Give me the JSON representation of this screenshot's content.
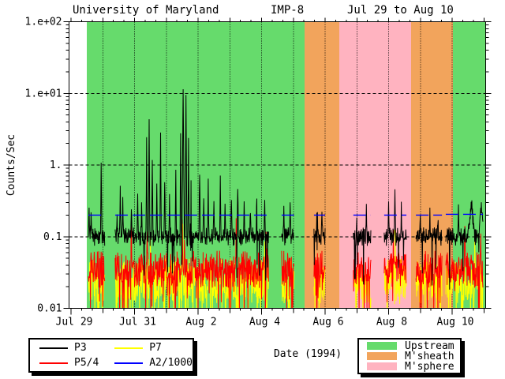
{
  "title": {
    "left": "University of Maryland",
    "center": "IMP-8",
    "right": "Jul 29 to Aug 10"
  },
  "axis": {
    "ylabel": "Counts/Sec",
    "xlabel": "Date (1994)"
  },
  "legend_series": {
    "items": [
      {
        "label": "P3",
        "color": "#000000"
      },
      {
        "label": "P5/4",
        "color": "#FF0000"
      },
      {
        "label": "P7",
        "color": "#FFFF00"
      },
      {
        "label": "A2/1000",
        "color": "#0000FF"
      }
    ]
  },
  "legend_regions": {
    "items": [
      {
        "label": "Upstream",
        "color": "#66DB6C"
      },
      {
        "label": "M'sheath",
        "color": "#F2A45C"
      },
      {
        "label": "M'sphere",
        "color": "#FFB3C0"
      }
    ]
  },
  "chart_data": {
    "type": "line",
    "title": "University of Maryland  IMP-8  Jul 29 to Aug 10",
    "xlabel": "Date (1994)",
    "ylabel": "Counts/Sec",
    "x_axis": {
      "unit": "days from 1994-07-29 00:00",
      "min": -0.06,
      "max": 13.06,
      "labeled_tick_days": [
        0,
        2,
        4,
        6,
        8,
        10,
        12
      ],
      "labeled_tick_labels": [
        "Jul 29",
        "Jul 31",
        "Aug 2",
        "Aug 4",
        "Aug 6",
        "Aug 8",
        "Aug 10"
      ],
      "day_tick_interval": 1,
      "minor_tick_interval": 0.33333
    },
    "y_axis": {
      "scale": "log",
      "min": 0.01,
      "max": 100,
      "tick_values": [
        100,
        10,
        1,
        0.1,
        0.01
      ],
      "tick_labels": [
        "1.e+02",
        "1.e+01",
        "1.",
        "0.1",
        "0.01"
      ]
    },
    "grid": {
      "vertical": "dotted each day",
      "horizontal": "dashed each decade",
      "legend_position": "below"
    },
    "regions": [
      {
        "label": "Upstream",
        "color": "#66DB6C",
        "from_day": 0.497,
        "to_day": 7.354
      },
      {
        "label": "M'sheath",
        "color": "#F2A45C",
        "from_day": 7.354,
        "to_day": 8.447
      },
      {
        "label": "M'sphere",
        "color": "#FFB3C0",
        "from_day": 8.447,
        "to_day": 10.708
      },
      {
        "label": "M'sheath",
        "color": "#F2A45C",
        "from_day": 10.708,
        "to_day": 12.025
      },
      {
        "label": "Upstream",
        "color": "#66DB6C",
        "from_day": 12.025,
        "to_day": 13.06
      }
    ],
    "data_intervals": [
      [
        0.55,
        1.07
      ],
      [
        1.39,
        6.22
      ],
      [
        6.63,
        7.02
      ],
      [
        7.65,
        8.0
      ],
      [
        8.89,
        9.44
      ],
      [
        9.86,
        10.56
      ],
      [
        10.86,
        11.68
      ],
      [
        11.8,
        12.97
      ]
    ],
    "sample_step_days": 0.01,
    "series": [
      {
        "name": "P3",
        "color": "#000000",
        "style": "solid",
        "baseline": 0.1,
        "noise_log10": 0.09,
        "spikes": [
          [
            0.57,
            0.28
          ],
          [
            0.63,
            0.2
          ],
          [
            0.95,
            1.15
          ],
          [
            1.45,
            0.22
          ],
          [
            1.55,
            0.45
          ],
          [
            1.63,
            0.3
          ],
          [
            1.9,
            0.25
          ],
          [
            2.1,
            0.4
          ],
          [
            2.22,
            0.3
          ],
          [
            2.38,
            2.0
          ],
          [
            2.46,
            4.5
          ],
          [
            2.56,
            1.3
          ],
          [
            2.7,
            0.5
          ],
          [
            2.82,
            3.0
          ],
          [
            2.95,
            0.6
          ],
          [
            3.1,
            0.35
          ],
          [
            3.3,
            0.7
          ],
          [
            3.45,
            2.5
          ],
          [
            3.53,
            13.5,
            0.035
          ],
          [
            3.62,
            8.0,
            0.03
          ],
          [
            3.7,
            2.0
          ],
          [
            3.78,
            0.6
          ],
          [
            4.05,
            0.9
          ],
          [
            4.18,
            0.35
          ],
          [
            4.32,
            0.5
          ],
          [
            4.5,
            0.3
          ],
          [
            4.7,
            0.65
          ],
          [
            4.85,
            0.3
          ],
          [
            5.05,
            0.35
          ],
          [
            5.25,
            0.55
          ],
          [
            5.45,
            0.3
          ],
          [
            5.65,
            0.25
          ],
          [
            5.85,
            0.35
          ],
          [
            6.1,
            0.32
          ],
          [
            6.7,
            0.3
          ],
          [
            6.9,
            0.28
          ],
          [
            7.75,
            0.3
          ],
          [
            7.9,
            0.25
          ],
          [
            9.0,
            0.2
          ],
          [
            9.3,
            0.22
          ],
          [
            10.0,
            0.3
          ],
          [
            10.2,
            0.45
          ],
          [
            10.4,
            0.25
          ],
          [
            11.0,
            0.2
          ],
          [
            11.3,
            0.22
          ],
          [
            11.55,
            0.2
          ],
          [
            12.2,
            0.25
          ],
          [
            12.6,
            0.3,
            0.12
          ],
          [
            12.92,
            0.3,
            0.08
          ]
        ]
      },
      {
        "name": "P5/4",
        "color": "#FF0000",
        "style": "solid",
        "baseline": 0.035,
        "noise_log10": 0.22,
        "spikes": [
          [
            1.9,
            0.12
          ],
          [
            2.4,
            0.1
          ],
          [
            3.5,
            0.16
          ],
          [
            3.57,
            0.13
          ],
          [
            5.2,
            0.1
          ],
          [
            6.15,
            0.2
          ],
          [
            10.15,
            0.1
          ],
          [
            12.4,
            0.12
          ],
          [
            12.9,
            0.1
          ]
        ]
      },
      {
        "name": "P7",
        "color": "#FFFF00",
        "style": "solid",
        "baseline": 0.024,
        "noise_log10": 0.28,
        "spikes": [
          [
            2.5,
            0.08
          ],
          [
            3.52,
            0.1
          ],
          [
            6.1,
            0.08
          ],
          [
            10.2,
            0.07
          ],
          [
            12.72,
            0.18
          ]
        ]
      },
      {
        "name": "A2/1000",
        "color": "#0000FF",
        "style": "dashed",
        "shape": "constant_per_interval",
        "levels_per_interval": [
          0.2,
          0.2,
          0.2,
          0.2,
          0.2,
          0.2,
          0.2,
          0.205
        ]
      }
    ]
  }
}
